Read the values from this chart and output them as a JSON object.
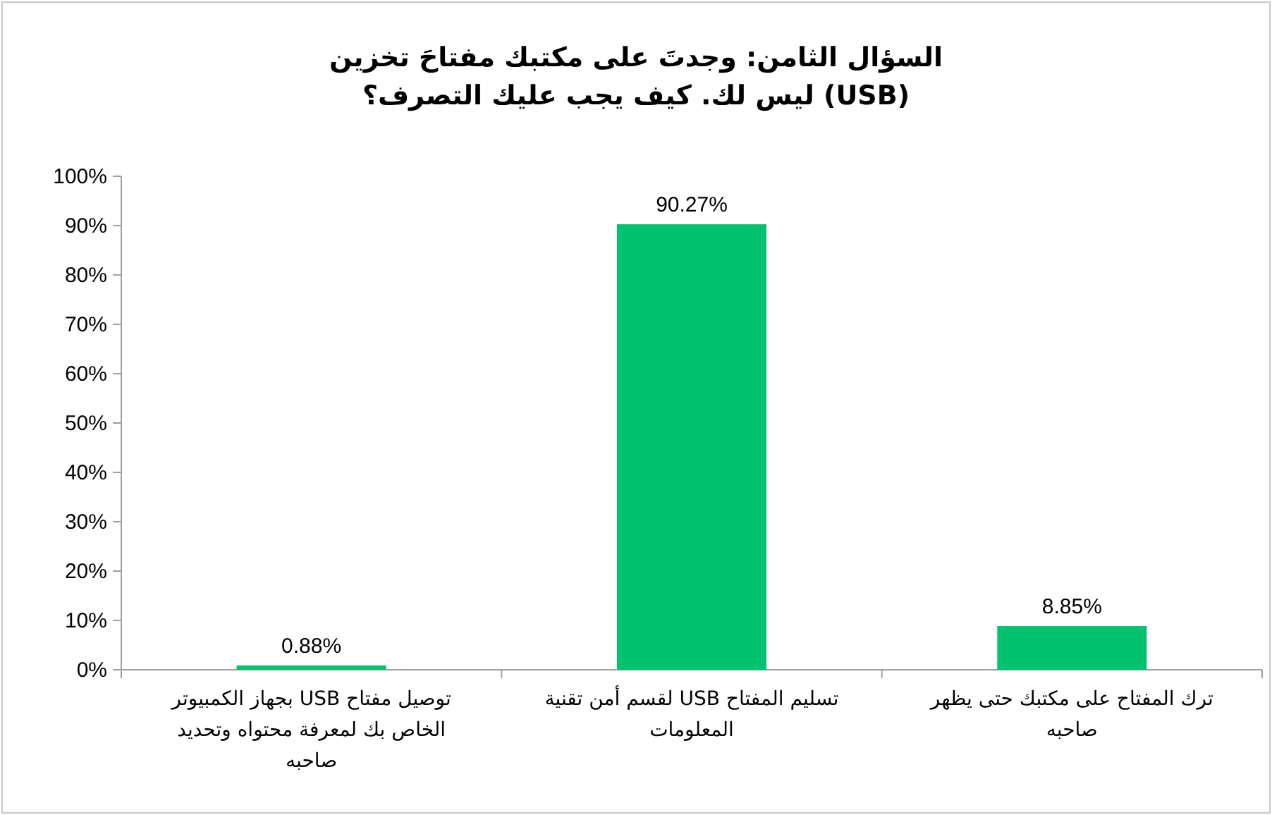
{
  "chart_data": {
    "type": "bar",
    "title": "السؤال الثامن: وجدتَ على مكتبك مفتاحَ تخزين (USB) ليس لك. كيف يجب عليك التصرف؟",
    "categories": [
      "توصيل مفتاح USB بجهاز الكمبيوتر الخاص بك لمعرفة محتواه وتحديد صاحبه",
      "تسليم المفتاح USB لقسم أمن تقنية المعلومات",
      "ترك المفتاح على مكتبك حتى يظهر صاحبه"
    ],
    "values": [
      0.88,
      90.27,
      8.85
    ],
    "value_labels": [
      "0.88%",
      "90.27%",
      "8.85%"
    ],
    "color": "#00c26f",
    "ylim": [
      0,
      100
    ],
    "yticks": [
      {
        "value": 0,
        "label": "0%"
      },
      {
        "value": 10,
        "label": "10%"
      },
      {
        "value": 20,
        "label": "20%"
      },
      {
        "value": 30,
        "label": "30%"
      },
      {
        "value": 40,
        "label": "40%"
      },
      {
        "value": 50,
        "label": "50%"
      },
      {
        "value": 60,
        "label": "60%"
      },
      {
        "value": 70,
        "label": "70%"
      },
      {
        "value": 80,
        "label": "80%"
      },
      {
        "value": 90,
        "label": "90%"
      },
      {
        "value": 100,
        "label": "100%"
      }
    ]
  }
}
